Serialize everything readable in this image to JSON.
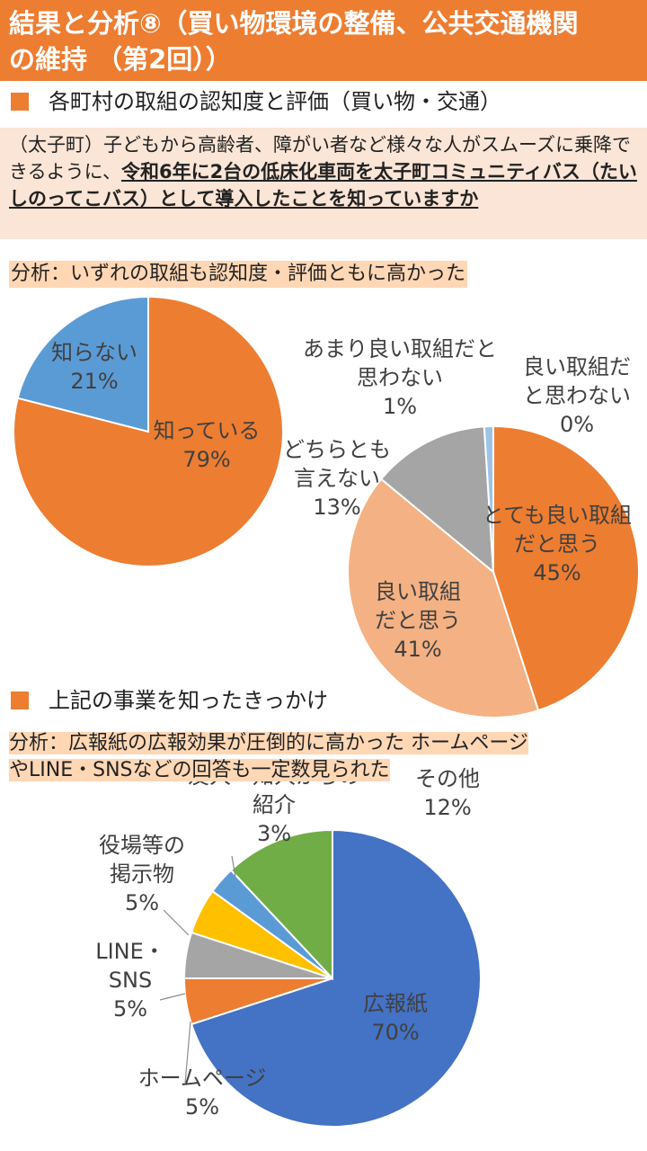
{
  "header": {
    "line1": "結果と分析⑧（買い物環境の整備、公共交通機関",
    "line2": "の維持 （第2回））"
  },
  "section1": {
    "heading": "各町村の取組の認知度と評価（買い物・交通）"
  },
  "question": {
    "prefix": "（太子町）子どもから高齢者、障がい者など様々な人がスムーズに乗降できるように、",
    "emphasis": "令和6年に2台の低床化車両を太子町コミュニティバス（たいしのってこバス）として導入したことを知っていますか"
  },
  "analysis1": "分析：いずれの取組も認知度・評価ともに高かった",
  "section2": {
    "heading": "上記の事業を知ったきっかけ"
  },
  "analysis2": {
    "line1": "分析：広報紙の広報効果が圧倒的に高かった ホームページ",
    "line2": "やLINE・SNSなどの回答も一定数見られた"
  },
  "chart_data": [
    {
      "type": "pie",
      "categories": [
        "知っている",
        "知らない"
      ],
      "values": [
        79,
        21
      ],
      "labels": [
        [
          "知っている",
          "79%"
        ],
        [
          "知らない",
          "21%"
        ]
      ],
      "colors": [
        "#ED7D31",
        "#5B9BD5"
      ],
      "start_angle_deg": 0,
      "direction": "clockwise"
    },
    {
      "type": "pie",
      "categories": [
        "とても良い取組だと思う",
        "良い取組だと思う",
        "どちらとも言えない",
        "あまり良い取組だと思わない",
        "良い取組だと思わない"
      ],
      "values": [
        45,
        41,
        13,
        1,
        0
      ],
      "labels": [
        [
          "とても良い取組",
          "だと思う",
          "45%"
        ],
        [
          "良い取組",
          "だと思う",
          "41%"
        ],
        [
          "どちらとも",
          "言えない",
          "13%"
        ],
        [
          "あまり良い取組だと",
          "思わない",
          "1%"
        ],
        [
          "良い取組だ",
          "と思わない",
          "0%"
        ]
      ],
      "colors": [
        "#ED7D31",
        "#F4B183",
        "#A5A5A5",
        "#9DC3E6",
        "#5B9BD5"
      ],
      "start_angle_deg": 0,
      "direction": "clockwise"
    },
    {
      "type": "pie",
      "categories": [
        "広報紙",
        "ホームページ",
        "LINE・SNS",
        "役場等の掲示物",
        "友人・知人からの紹介",
        "その他"
      ],
      "values": [
        70,
        5,
        5,
        5,
        3,
        12
      ],
      "labels": [
        [
          "広報紙",
          "70%"
        ],
        [
          "ホームページ",
          "5%"
        ],
        [
          "LINE・",
          "SNS",
          "5%"
        ],
        [
          "役場等の",
          "掲示物",
          "5%"
        ],
        [
          "友人・知人からの",
          "紹介",
          "3%"
        ],
        [
          "その他",
          "12%"
        ]
      ],
      "colors": [
        "#4472C4",
        "#ED7D31",
        "#A5A5A5",
        "#FFC000",
        "#5B9BD5",
        "#70AD47"
      ],
      "start_angle_deg": 0,
      "direction": "clockwise"
    }
  ]
}
